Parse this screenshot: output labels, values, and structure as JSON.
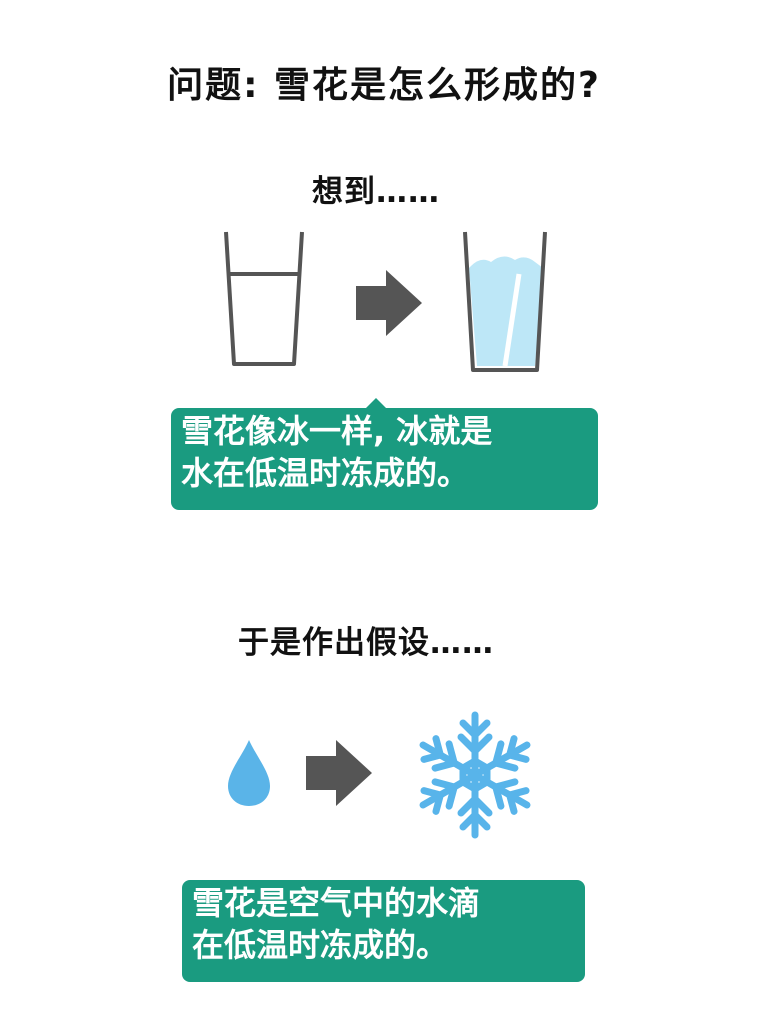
{
  "title": "问题: 雪花是怎么形成的?",
  "section1": {
    "heading": "想到……",
    "bubble": {
      "line1": "雪花像冰一样, 冰就是",
      "line2": "水在低温时冻成的。"
    }
  },
  "section2": {
    "heading": "于是作出假设……",
    "bubble": {
      "line1": "雪花是空气中的水滴",
      "line2": "在低温时冻成的。"
    }
  },
  "colors": {
    "bubble": "#1a9b80",
    "arrow": "#555555",
    "ice": "#bde7f7",
    "snowflake": "#58b4ea",
    "droplet": "#5ab4e8",
    "glass": "#555555"
  },
  "icons": [
    "water-glass-icon",
    "right-arrow-icon",
    "ice-glass-icon",
    "water-droplet-icon",
    "snowflake-icon"
  ]
}
